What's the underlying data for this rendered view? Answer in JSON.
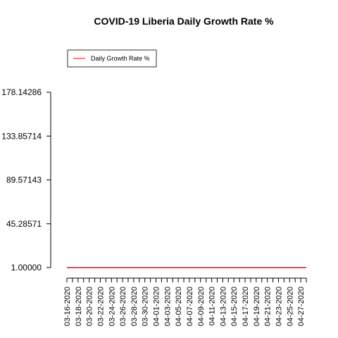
{
  "chart_data": {
    "type": "line",
    "title": "COVID-19 Liberia Daily Growth Rate %",
    "xlabel": "",
    "ylabel": "",
    "ylim": [
      1.0,
      178.14286
    ],
    "yticks": [
      "1.00000",
      "45.28571",
      "89.57143",
      "133.85714",
      "178.14286"
    ],
    "ytick_values": [
      1.0,
      45.28571,
      89.57143,
      133.85714,
      178.14286
    ],
    "x": [
      "03-16-2020",
      "03-17-2020",
      "03-18-2020",
      "03-19-2020",
      "03-20-2020",
      "03-21-2020",
      "03-22-2020",
      "03-23-2020",
      "03-24-2020",
      "03-25-2020",
      "03-26-2020",
      "03-27-2020",
      "03-28-2020",
      "03-29-2020",
      "03-30-2020",
      "03-31-2020",
      "04-01-2020",
      "04-02-2020",
      "04-03-2020",
      "04-04-2020",
      "04-05-2020",
      "04-06-2020",
      "04-07-2020",
      "04-08-2020",
      "04-09-2020",
      "04-10-2020",
      "04-11-2020",
      "04-12-2020",
      "04-13-2020",
      "04-14-2020",
      "04-15-2020",
      "04-16-2020",
      "04-17-2020",
      "04-18-2020",
      "04-19-2020",
      "04-20-2020",
      "04-21-2020",
      "04-22-2020",
      "04-23-2020",
      "04-24-2020",
      "04-25-2020",
      "04-26-2020",
      "04-27-2020",
      "04-28-2020"
    ],
    "xtick_labels": [
      "03-16-2020",
      "03-18-2020",
      "03-20-2020",
      "03-22-2020",
      "03-24-2020",
      "03-26-2020",
      "03-28-2020",
      "03-30-2020",
      "04-01-2020",
      "04-03-2020",
      "04-05-2020",
      "04-07-2020",
      "04-09-2020",
      "04-11-2020",
      "04-13-2020",
      "04-15-2020",
      "04-17-2020",
      "04-19-2020",
      "04-21-2020",
      "04-23-2020",
      "04-25-2020",
      "04-27-2020"
    ],
    "series": [
      {
        "name": "Daily Growth Rate %",
        "color": "#ff0000",
        "values": [
          1,
          1,
          1,
          1,
          1,
          1,
          1,
          1,
          1,
          1,
          1,
          1,
          1,
          1,
          1,
          1,
          1,
          1,
          1,
          1,
          1,
          1,
          1,
          1,
          1,
          1,
          1,
          1,
          1,
          1,
          1,
          1,
          1,
          1,
          1,
          1,
          1,
          1,
          1,
          1,
          1,
          1,
          1,
          1
        ]
      }
    ],
    "legend": {
      "position": "top-left",
      "entries": [
        "Daily Growth Rate %"
      ]
    },
    "grid": false
  }
}
